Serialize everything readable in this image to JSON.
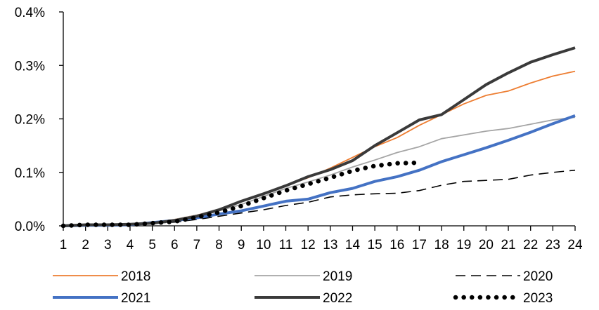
{
  "chart_data": {
    "type": "line",
    "title": "",
    "xlabel": "",
    "ylabel": "",
    "x": [
      1,
      2,
      3,
      4,
      5,
      6,
      7,
      8,
      9,
      10,
      11,
      12,
      13,
      14,
      15,
      16,
      17,
      18,
      19,
      20,
      21,
      22,
      23,
      24
    ],
    "xlim": [
      1,
      24
    ],
    "ylim": [
      0,
      0.4
    ],
    "y_ticks": [
      {
        "value": 0.0,
        "label": "0.0%"
      },
      {
        "value": 0.1,
        "label": "0.1%"
      },
      {
        "value": 0.2,
        "label": "0.2%"
      },
      {
        "value": 0.3,
        "label": "0.3%"
      },
      {
        "value": 0.4,
        "label": "0.4%"
      }
    ],
    "x_tick_labels": [
      "1",
      "2",
      "3",
      "4",
      "5",
      "6",
      "7",
      "8",
      "9",
      "10",
      "11",
      "12",
      "13",
      "14",
      "15",
      "16",
      "17",
      "18",
      "19",
      "20",
      "21",
      "22",
      "23",
      "24"
    ],
    "grid": false,
    "legend_position": "bottom",
    "series": [
      {
        "name": "2018",
        "color": "#ED7D31",
        "style": "solid",
        "weight": "thin",
        "values": [
          0.0,
          0.002,
          0.003,
          0.003,
          0.006,
          0.012,
          0.02,
          0.03,
          0.045,
          0.06,
          0.075,
          0.09,
          0.108,
          0.128,
          0.148,
          0.165,
          0.188,
          0.208,
          0.228,
          0.244,
          0.252,
          0.267,
          0.28,
          0.289
        ]
      },
      {
        "name": "2019",
        "color": "#A5A5A5",
        "style": "solid",
        "weight": "thin",
        "values": [
          0.0,
          0.002,
          0.002,
          0.003,
          0.006,
          0.012,
          0.02,
          0.028,
          0.04,
          0.055,
          0.07,
          0.082,
          0.095,
          0.11,
          0.123,
          0.137,
          0.148,
          0.163,
          0.17,
          0.177,
          0.182,
          0.19,
          0.198,
          0.203
        ]
      },
      {
        "name": "2020",
        "color": "#000000",
        "style": "dashed",
        "weight": "thin",
        "values": [
          0.0,
          0.002,
          0.002,
          0.003,
          0.005,
          0.007,
          0.012,
          0.018,
          0.024,
          0.03,
          0.038,
          0.044,
          0.054,
          0.058,
          0.06,
          0.061,
          0.066,
          0.076,
          0.083,
          0.085,
          0.087,
          0.095,
          0.1,
          0.104
        ]
      },
      {
        "name": "2021",
        "color": "#4472C4",
        "style": "solid",
        "weight": "thick",
        "values": [
          0.0,
          0.001,
          0.001,
          0.002,
          0.006,
          0.01,
          0.015,
          0.022,
          0.028,
          0.037,
          0.046,
          0.05,
          0.062,
          0.07,
          0.083,
          0.092,
          0.104,
          0.12,
          0.133,
          0.146,
          0.16,
          0.175,
          0.191,
          0.206
        ]
      },
      {
        "name": "2022",
        "color": "#3A3A3A",
        "style": "solid",
        "weight": "thick",
        "values": [
          0.0,
          0.002,
          0.002,
          0.003,
          0.005,
          0.01,
          0.018,
          0.03,
          0.046,
          0.06,
          0.075,
          0.092,
          0.105,
          0.122,
          0.15,
          0.174,
          0.198,
          0.208,
          0.236,
          0.264,
          0.286,
          0.306,
          0.32,
          0.333
        ]
      },
      {
        "name": "2023",
        "color": "#000000",
        "style": "dotted",
        "weight": "thick",
        "values": [
          0.0,
          0.002,
          0.002,
          0.002,
          0.005,
          0.008,
          0.016,
          0.025,
          0.037,
          0.052,
          0.066,
          0.078,
          0.09,
          0.103,
          0.112,
          0.117,
          0.118,
          null,
          null,
          null,
          null,
          null,
          null,
          null
        ]
      }
    ],
    "legend_rows": [
      [
        "2018",
        "2019",
        "2020"
      ],
      [
        "2021",
        "2022",
        "2023"
      ]
    ]
  }
}
